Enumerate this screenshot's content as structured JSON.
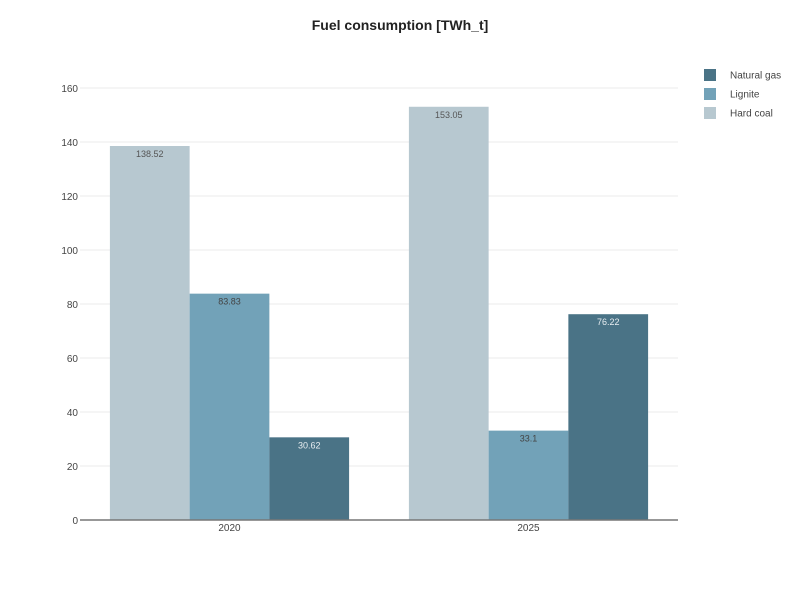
{
  "chart_data": {
    "type": "bar",
    "title": "Fuel consumption [TWh_t]",
    "xlabel": "",
    "ylabel": "",
    "categories": [
      "2020",
      "2025"
    ],
    "series": [
      {
        "name": "Hard coal",
        "values": [
          138.52,
          153.05
        ],
        "color": "#b7c8d0",
        "label_color": "#555555"
      },
      {
        "name": "Lignite",
        "values": [
          83.83,
          33.1
        ],
        "color": "#72a2b8",
        "label_color": "#444444"
      },
      {
        "name": "Natural gas",
        "values": [
          30.62,
          76.22
        ],
        "color": "#4a7386",
        "label_color": "#e8eef1"
      }
    ],
    "data_labels": [
      [
        "138.52",
        "153.05"
      ],
      [
        "83.83",
        "33.1"
      ],
      [
        "30.62",
        "76.22"
      ]
    ],
    "legend_order": [
      "Natural gas",
      "Lignite",
      "Hard coal"
    ],
    "y_ticks": [
      0,
      20,
      40,
      60,
      80,
      100,
      120,
      140,
      160
    ],
    "ylim": [
      0,
      160
    ],
    "grid": true,
    "legend_position": "top-right"
  }
}
